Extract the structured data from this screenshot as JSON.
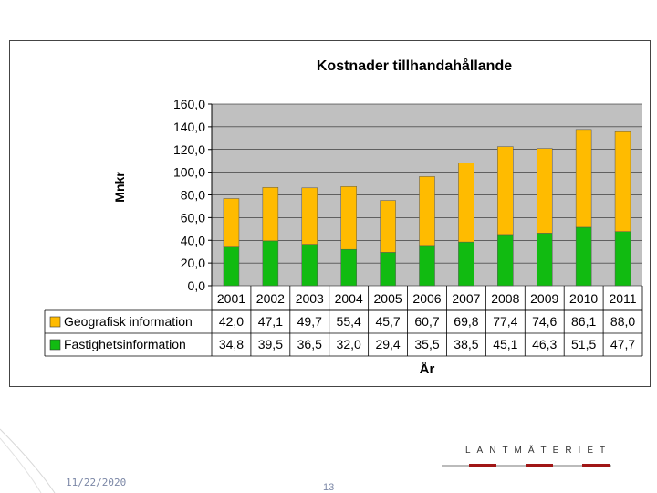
{
  "chart_data": {
    "type": "bar",
    "stacked": true,
    "title": "Kostnader tillhandahållande",
    "xlabel": "År",
    "ylabel": "Mnkr",
    "ylim": [
      0,
      160
    ],
    "yticks": [
      "0,0",
      "20,0",
      "40,0",
      "60,0",
      "80,0",
      "100,0",
      "120,0",
      "140,0",
      "160,0"
    ],
    "categories": [
      "2001",
      "2002",
      "2003",
      "2004",
      "2005",
      "2006",
      "2007",
      "2008",
      "2009",
      "2010",
      "2011"
    ],
    "series": [
      {
        "name": "Fastighetsinformation",
        "color": "#11bb11",
        "values": [
          34.8,
          39.5,
          36.5,
          32.0,
          29.4,
          35.5,
          38.5,
          45.1,
          46.3,
          51.5,
          47.7
        ],
        "labels": [
          "34,8",
          "39,5",
          "36,5",
          "32,0",
          "29,4",
          "35,5",
          "38,5",
          "45,1",
          "46,3",
          "51,5",
          "47,7"
        ]
      },
      {
        "name": "Geografisk information",
        "color": "#ffbb00",
        "values": [
          42.0,
          47.1,
          49.7,
          55.4,
          45.7,
          60.7,
          69.8,
          77.4,
          74.6,
          86.1,
          88.0
        ],
        "labels": [
          "42,0",
          "47,1",
          "49,7",
          "55,4",
          "45,7",
          "60,7",
          "69,8",
          "77,4",
          "74,6",
          "86,1",
          "88,0"
        ]
      }
    ],
    "grid": true
  },
  "footer": {
    "date": "11/22/2020",
    "page": "13",
    "logo_text": "LANTMÄTERIET"
  },
  "colors": {
    "plot_bg": "#c0c0c0",
    "logo_red": "#a01515"
  }
}
